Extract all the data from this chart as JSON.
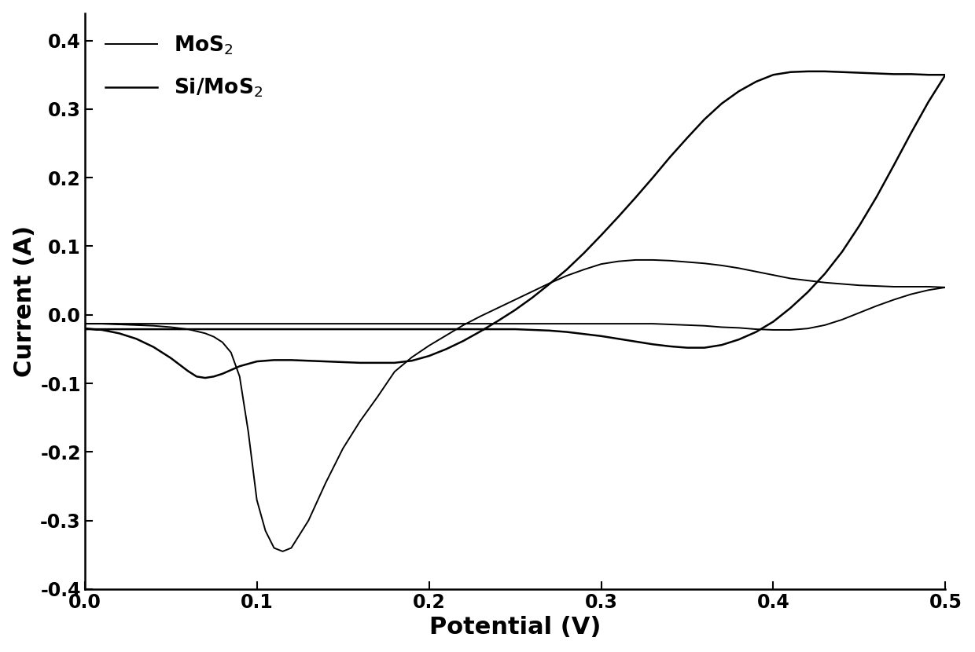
{
  "xlabel": "Potential (V)",
  "ylabel": "Current (A)",
  "xlim": [
    0.0,
    0.5
  ],
  "ylim": [
    -0.4,
    0.44
  ],
  "xticks": [
    0.0,
    0.1,
    0.2,
    0.3,
    0.4,
    0.5
  ],
  "yticks": [
    -0.4,
    -0.3,
    -0.2,
    -0.1,
    0.0,
    0.1,
    0.2,
    0.3,
    0.4
  ],
  "legend_labels": [
    "MoS$_2$",
    "Si/MoS$_2$"
  ],
  "line_color": "#000000",
  "background_color": "#ffffff",
  "label_fontsize": 22,
  "tick_fontsize": 17,
  "legend_fontsize": 19,
  "mos2_linewidth": 1.4,
  "simos2_linewidth": 1.8,
  "mos2_fwd_x": [
    0.0,
    0.01,
    0.02,
    0.03,
    0.04,
    0.05,
    0.06,
    0.07,
    0.075,
    0.08,
    0.085,
    0.09,
    0.095,
    0.1,
    0.105,
    0.11,
    0.115,
    0.12,
    0.13,
    0.14,
    0.15,
    0.16,
    0.17,
    0.18,
    0.19,
    0.2,
    0.21,
    0.22,
    0.23,
    0.24,
    0.25,
    0.26,
    0.27,
    0.28,
    0.29,
    0.3,
    0.31,
    0.32,
    0.33,
    0.34,
    0.35,
    0.36,
    0.37,
    0.38,
    0.39,
    0.4,
    0.41,
    0.42,
    0.43,
    0.44,
    0.45,
    0.46,
    0.47,
    0.48,
    0.49,
    0.5
  ],
  "mos2_fwd_y": [
    -0.013,
    -0.013,
    -0.014,
    -0.015,
    -0.016,
    -0.018,
    -0.021,
    -0.027,
    -0.032,
    -0.04,
    -0.055,
    -0.09,
    -0.17,
    -0.27,
    -0.315,
    -0.34,
    -0.345,
    -0.34,
    -0.3,
    -0.245,
    -0.195,
    -0.155,
    -0.12,
    -0.083,
    -0.062,
    -0.045,
    -0.03,
    -0.015,
    -0.002,
    0.01,
    0.022,
    0.034,
    0.046,
    0.057,
    0.066,
    0.074,
    0.078,
    0.08,
    0.08,
    0.079,
    0.077,
    0.075,
    0.072,
    0.068,
    0.063,
    0.058,
    0.053,
    0.05,
    0.047,
    0.045,
    0.043,
    0.042,
    0.041,
    0.041,
    0.041,
    0.04
  ],
  "mos2_rev_x": [
    0.5,
    0.49,
    0.48,
    0.47,
    0.46,
    0.45,
    0.44,
    0.43,
    0.42,
    0.41,
    0.4,
    0.39,
    0.38,
    0.37,
    0.36,
    0.35,
    0.34,
    0.33,
    0.32,
    0.31,
    0.3,
    0.29,
    0.28,
    0.27,
    0.26,
    0.25,
    0.24,
    0.23,
    0.22,
    0.21,
    0.2,
    0.19,
    0.18,
    0.17,
    0.16,
    0.15,
    0.14,
    0.13,
    0.12,
    0.11,
    0.1,
    0.09,
    0.08,
    0.07,
    0.06,
    0.05,
    0.04,
    0.03,
    0.02,
    0.01,
    0.0
  ],
  "mos2_rev_y": [
    0.04,
    0.036,
    0.03,
    0.022,
    0.013,
    0.003,
    -0.007,
    -0.015,
    -0.02,
    -0.022,
    -0.022,
    -0.021,
    -0.019,
    -0.018,
    -0.016,
    -0.015,
    -0.014,
    -0.013,
    -0.013,
    -0.013,
    -0.013,
    -0.013,
    -0.013,
    -0.013,
    -0.013,
    -0.013,
    -0.013,
    -0.013,
    -0.013,
    -0.013,
    -0.013,
    -0.013,
    -0.013,
    -0.013,
    -0.013,
    -0.013,
    -0.013,
    -0.013,
    -0.013,
    -0.013,
    -0.013,
    -0.013,
    -0.013,
    -0.013,
    -0.013,
    -0.013,
    -0.013,
    -0.013,
    -0.013,
    -0.013,
    -0.013
  ],
  "simos2_fwd_x": [
    0.0,
    0.01,
    0.02,
    0.03,
    0.04,
    0.05,
    0.06,
    0.065,
    0.07,
    0.075,
    0.08,
    0.09,
    0.1,
    0.11,
    0.12,
    0.13,
    0.14,
    0.15,
    0.16,
    0.17,
    0.18,
    0.19,
    0.2,
    0.21,
    0.22,
    0.23,
    0.24,
    0.25,
    0.26,
    0.27,
    0.28,
    0.29,
    0.3,
    0.31,
    0.32,
    0.33,
    0.34,
    0.35,
    0.36,
    0.37,
    0.38,
    0.39,
    0.4,
    0.41,
    0.42,
    0.43,
    0.44,
    0.45,
    0.46,
    0.47,
    0.48,
    0.49,
    0.5
  ],
  "simos2_fwd_y": [
    -0.02,
    -0.022,
    -0.027,
    -0.035,
    -0.047,
    -0.063,
    -0.082,
    -0.09,
    -0.092,
    -0.09,
    -0.086,
    -0.075,
    -0.068,
    -0.066,
    -0.066,
    -0.067,
    -0.068,
    -0.069,
    -0.07,
    -0.07,
    -0.07,
    -0.067,
    -0.06,
    -0.05,
    -0.038,
    -0.024,
    -0.009,
    0.007,
    0.025,
    0.045,
    0.066,
    0.09,
    0.116,
    0.143,
    0.171,
    0.2,
    0.23,
    0.258,
    0.285,
    0.308,
    0.326,
    0.34,
    0.35,
    0.354,
    0.355,
    0.355,
    0.354,
    0.353,
    0.352,
    0.351,
    0.351,
    0.35,
    0.35
  ],
  "simos2_rev_x": [
    0.5,
    0.49,
    0.48,
    0.47,
    0.46,
    0.45,
    0.44,
    0.43,
    0.42,
    0.41,
    0.4,
    0.39,
    0.38,
    0.37,
    0.36,
    0.35,
    0.34,
    0.33,
    0.32,
    0.31,
    0.3,
    0.29,
    0.28,
    0.27,
    0.26,
    0.25,
    0.24,
    0.23,
    0.22,
    0.21,
    0.2,
    0.19,
    0.18,
    0.17,
    0.16,
    0.15,
    0.14,
    0.13,
    0.12,
    0.11,
    0.1,
    0.09,
    0.08,
    0.07,
    0.06,
    0.05,
    0.04,
    0.03,
    0.02,
    0.01,
    0.0
  ],
  "simos2_rev_y": [
    0.35,
    0.31,
    0.265,
    0.218,
    0.172,
    0.13,
    0.092,
    0.06,
    0.033,
    0.01,
    -0.01,
    -0.025,
    -0.036,
    -0.044,
    -0.048,
    -0.048,
    -0.046,
    -0.043,
    -0.039,
    -0.035,
    -0.031,
    -0.028,
    -0.025,
    -0.023,
    -0.022,
    -0.021,
    -0.021,
    -0.021,
    -0.021,
    -0.021,
    -0.021,
    -0.021,
    -0.021,
    -0.021,
    -0.021,
    -0.021,
    -0.021,
    -0.021,
    -0.021,
    -0.021,
    -0.021,
    -0.021,
    -0.021,
    -0.021,
    -0.021,
    -0.021,
    -0.021,
    -0.021,
    -0.021,
    -0.021,
    -0.021
  ]
}
